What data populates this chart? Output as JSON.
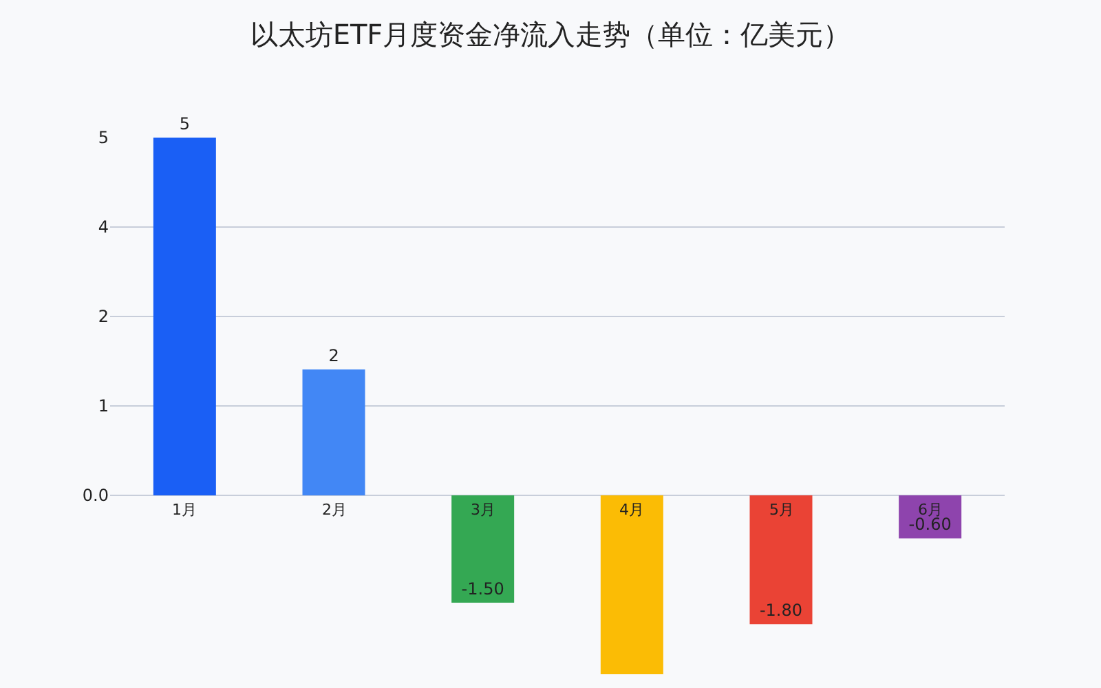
{
  "chart_data": {
    "type": "bar",
    "title": "以太坊ETF月度资金净流入走势（单位：亿美元）",
    "categories": [
      "1月",
      "2月",
      "3月",
      "4月",
      "5月",
      "6月"
    ],
    "values": [
      5,
      1.76,
      -1.5,
      -2.5,
      -1.8,
      -0.6
    ],
    "colors": [
      "#1a5ff5",
      "#4287f5",
      "#34a853",
      "#fbbc05",
      "#ea4335",
      "#8e44ad"
    ],
    "value_labels": [
      "5",
      "2",
      "-1.50",
      null,
      "-1.80",
      "-0.60"
    ],
    "ylim": [
      -2.5,
      5
    ],
    "yticks": [
      {
        "value": 0,
        "label": "0.0"
      },
      {
        "value": 1.25,
        "label": "1"
      },
      {
        "value": 2.5,
        "label": "2"
      },
      {
        "value": 3.75,
        "label": "4"
      },
      {
        "value": 5,
        "label": "5"
      }
    ],
    "grid": "y"
  }
}
